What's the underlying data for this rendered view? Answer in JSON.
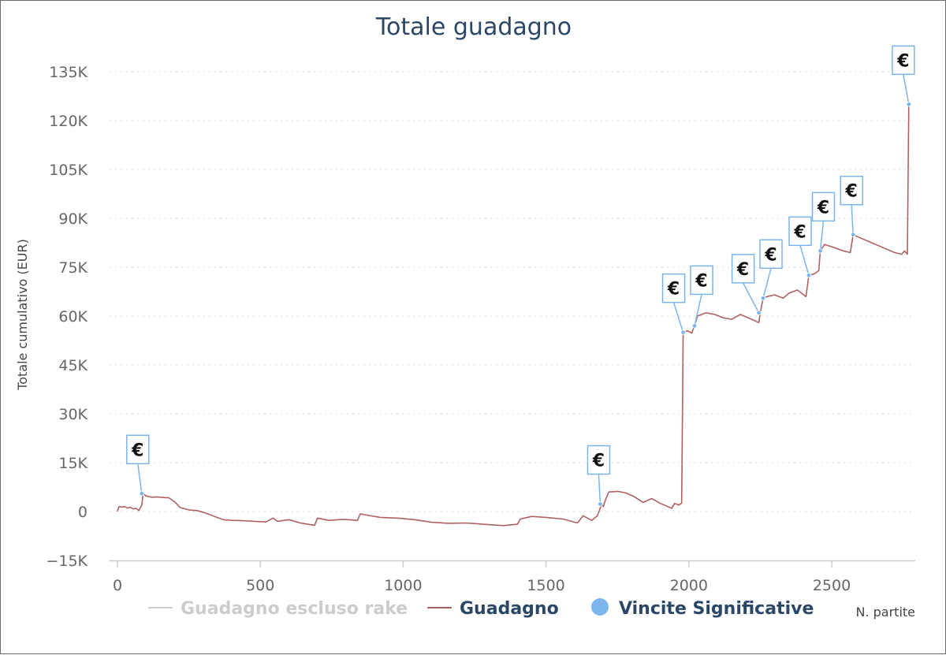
{
  "chart_data": {
    "type": "line",
    "title": "Totale guadagno",
    "xlabel": "N. partite",
    "ylabel": "Totale cumulativo (EUR)",
    "xlim": [
      -20,
      2790
    ],
    "ylim": [
      -15000,
      135000
    ],
    "x_ticks": [
      0,
      500,
      1000,
      1500,
      2000,
      2500
    ],
    "x_tick_labels": [
      "0",
      "500",
      "1000",
      "1500",
      "2000",
      "2500"
    ],
    "y_ticks": [
      -15000,
      0,
      15000,
      30000,
      45000,
      60000,
      75000,
      90000,
      105000,
      120000,
      135000
    ],
    "y_tick_labels": [
      "−15K",
      "0",
      "15K",
      "30K",
      "45K",
      "60K",
      "75K",
      "90K",
      "105K",
      "120K",
      "135K"
    ],
    "grid": "horizontal dotted",
    "legend_position": "bottom",
    "series": [
      {
        "name": "Guadagno escluso rake",
        "color": "#cccccc",
        "hidden": true,
        "points": []
      },
      {
        "name": "Guadagno",
        "color": "#b06060",
        "points": [
          [
            0,
            0
          ],
          [
            5,
            1500
          ],
          [
            15,
            1400
          ],
          [
            25,
            1500
          ],
          [
            35,
            1100
          ],
          [
            45,
            1300
          ],
          [
            55,
            800
          ],
          [
            65,
            1000
          ],
          [
            75,
            300
          ],
          [
            85,
            2000
          ],
          [
            90,
            5500
          ],
          [
            100,
            4800
          ],
          [
            110,
            4600
          ],
          [
            120,
            4400
          ],
          [
            140,
            4500
          ],
          [
            160,
            4300
          ],
          [
            180,
            4200
          ],
          [
            200,
            3000
          ],
          [
            220,
            1200
          ],
          [
            250,
            500
          ],
          [
            280,
            300
          ],
          [
            310,
            -500
          ],
          [
            340,
            -1500
          ],
          [
            370,
            -2500
          ],
          [
            400,
            -2700
          ],
          [
            440,
            -2800
          ],
          [
            480,
            -3000
          ],
          [
            520,
            -3200
          ],
          [
            545,
            -2000
          ],
          [
            560,
            -3000
          ],
          [
            600,
            -2500
          ],
          [
            640,
            -3500
          ],
          [
            690,
            -4200
          ],
          [
            700,
            -2000
          ],
          [
            740,
            -2700
          ],
          [
            790,
            -2400
          ],
          [
            840,
            -2700
          ],
          [
            850,
            -700
          ],
          [
            880,
            -1200
          ],
          [
            920,
            -1800
          ],
          [
            980,
            -2000
          ],
          [
            1040,
            -2500
          ],
          [
            1100,
            -3300
          ],
          [
            1160,
            -3600
          ],
          [
            1220,
            -3500
          ],
          [
            1280,
            -3900
          ],
          [
            1350,
            -4300
          ],
          [
            1400,
            -3900
          ],
          [
            1410,
            -2300
          ],
          [
            1450,
            -1500
          ],
          [
            1500,
            -1800
          ],
          [
            1560,
            -2300
          ],
          [
            1610,
            -3500
          ],
          [
            1630,
            -1300
          ],
          [
            1660,
            -2700
          ],
          [
            1680,
            -1300
          ],
          [
            1695,
            2300
          ],
          [
            1700,
            1500
          ],
          [
            1710,
            4000
          ],
          [
            1720,
            6000
          ],
          [
            1750,
            6200
          ],
          [
            1780,
            5700
          ],
          [
            1810,
            4500
          ],
          [
            1840,
            2800
          ],
          [
            1870,
            4000
          ],
          [
            1900,
            2500
          ],
          [
            1940,
            1000
          ],
          [
            1950,
            2500
          ],
          [
            1965,
            2000
          ],
          [
            1975,
            2600
          ],
          [
            1980,
            55000
          ],
          [
            1995,
            55500
          ],
          [
            2010,
            54800
          ],
          [
            2020,
            57000
          ],
          [
            2030,
            60000
          ],
          [
            2060,
            61000
          ],
          [
            2090,
            60500
          ],
          [
            2120,
            59500
          ],
          [
            2150,
            59000
          ],
          [
            2180,
            60500
          ],
          [
            2220,
            59000
          ],
          [
            2245,
            58000
          ],
          [
            2250,
            61000
          ],
          [
            2260,
            65500
          ],
          [
            2275,
            66000
          ],
          [
            2300,
            66500
          ],
          [
            2330,
            65500
          ],
          [
            2350,
            67000
          ],
          [
            2380,
            68000
          ],
          [
            2410,
            66000
          ],
          [
            2420,
            72500
          ],
          [
            2440,
            73000
          ],
          [
            2455,
            74000
          ],
          [
            2460,
            80000
          ],
          [
            2475,
            82000
          ],
          [
            2510,
            81000
          ],
          [
            2540,
            80000
          ],
          [
            2565,
            79500
          ],
          [
            2575,
            85000
          ],
          [
            2600,
            84000
          ],
          [
            2640,
            82500
          ],
          [
            2680,
            81000
          ],
          [
            2720,
            79500
          ],
          [
            2745,
            79000
          ],
          [
            2755,
            80000
          ],
          [
            2765,
            79000
          ],
          [
            2770,
            125000
          ]
        ]
      },
      {
        "name": "Vincite Significative",
        "color": "#7cb5ec",
        "marker": "circle",
        "flag_label": "€",
        "points": [
          [
            85,
            5500
          ],
          [
            1690,
            2300
          ],
          [
            1980,
            55000
          ],
          [
            2020,
            57000
          ],
          [
            2245,
            61000
          ],
          [
            2260,
            65500
          ],
          [
            2420,
            72500
          ],
          [
            2460,
            80000
          ],
          [
            2575,
            85000
          ],
          [
            2770,
            125000
          ]
        ]
      }
    ]
  }
}
